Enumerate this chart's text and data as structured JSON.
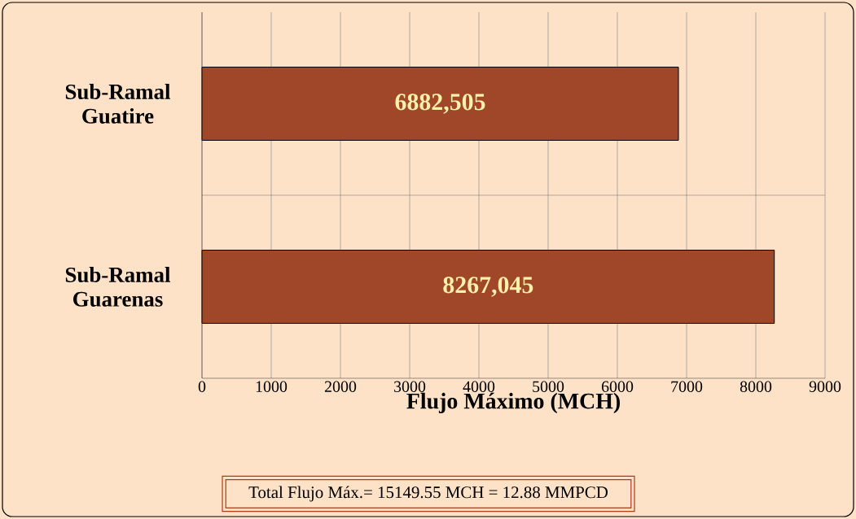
{
  "chart_data": {
    "type": "bar",
    "orientation": "horizontal",
    "categories": [
      "Sub-Ramal Guatire",
      "Sub-Ramal Guarenas"
    ],
    "values": [
      6882.505,
      8267.045
    ],
    "value_labels": [
      "6882,505",
      "8267,045"
    ],
    "color": "#a0472a",
    "xlim": [
      0,
      9000
    ],
    "xticks": [
      0,
      1000,
      2000,
      3000,
      4000,
      5000,
      6000,
      7000,
      8000,
      9000
    ],
    "xlabel": "Flujo Máximo (MCH)",
    "grid": true,
    "annotations": [
      "Total Flujo Máx.= 15149.55 MCH = 12.88 MMPCD"
    ]
  }
}
